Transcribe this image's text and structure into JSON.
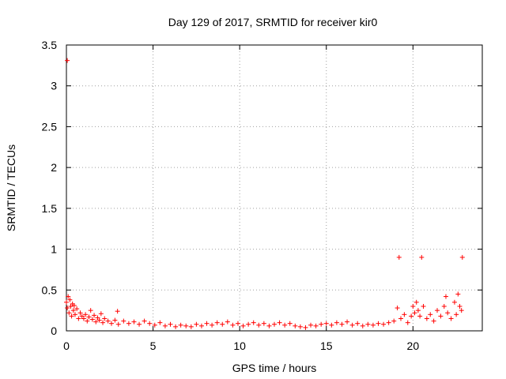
{
  "chart_data": {
    "type": "scatter",
    "title": "Day 129 of 2017, SRMTID for receiver kir0",
    "xlabel": "GPS time / hours",
    "ylabel": "SRMTID / TECUs",
    "xlim": [
      0,
      24
    ],
    "ylim": [
      0,
      3.5
    ],
    "x_ticks": [
      0,
      5,
      10,
      15,
      20
    ],
    "x_tick_labels": [
      "0",
      "5",
      "10",
      "15",
      "20"
    ],
    "y_ticks": [
      0,
      0.5,
      1,
      1.5,
      2,
      2.5,
      3,
      3.5
    ],
    "y_tick_labels": [
      "0",
      "0.5",
      "1",
      "1.5",
      "2",
      "2.5",
      "3",
      "3.5"
    ],
    "grid": true,
    "legend": "none",
    "marker": "+",
    "color": "#ff0000",
    "points": [
      [
        0.05,
        3.31
      ],
      [
        0.0,
        0.35
      ],
      [
        0.05,
        0.28
      ],
      [
        0.1,
        0.42
      ],
      [
        0.15,
        0.22
      ],
      [
        0.2,
        0.38
      ],
      [
        0.25,
        0.3
      ],
      [
        0.3,
        0.18
      ],
      [
        0.35,
        0.33
      ],
      [
        0.4,
        0.25
      ],
      [
        0.45,
        0.31
      ],
      [
        0.5,
        0.2
      ],
      [
        0.6,
        0.27
      ],
      [
        0.7,
        0.15
      ],
      [
        0.8,
        0.22
      ],
      [
        0.9,
        0.18
      ],
      [
        1.0,
        0.15
      ],
      [
        1.1,
        0.2
      ],
      [
        1.2,
        0.12
      ],
      [
        1.3,
        0.17
      ],
      [
        1.4,
        0.25
      ],
      [
        1.5,
        0.14
      ],
      [
        1.6,
        0.19
      ],
      [
        1.7,
        0.11
      ],
      [
        1.8,
        0.16
      ],
      [
        1.9,
        0.13
      ],
      [
        2.0,
        0.21
      ],
      [
        2.1,
        0.1
      ],
      [
        2.2,
        0.15
      ],
      [
        2.4,
        0.12
      ],
      [
        2.6,
        0.09
      ],
      [
        2.8,
        0.13
      ],
      [
        2.95,
        0.24
      ],
      [
        3.0,
        0.08
      ],
      [
        3.3,
        0.12
      ],
      [
        3.6,
        0.09
      ],
      [
        3.9,
        0.11
      ],
      [
        4.2,
        0.08
      ],
      [
        4.5,
        0.12
      ],
      [
        4.8,
        0.09
      ],
      [
        5.1,
        0.07
      ],
      [
        5.4,
        0.1
      ],
      [
        5.7,
        0.06
      ],
      [
        6.0,
        0.08
      ],
      [
        6.3,
        0.05
      ],
      [
        6.6,
        0.07
      ],
      [
        6.9,
        0.06
      ],
      [
        7.2,
        0.05
      ],
      [
        7.5,
        0.08
      ],
      [
        7.8,
        0.06
      ],
      [
        8.1,
        0.09
      ],
      [
        8.4,
        0.07
      ],
      [
        8.7,
        0.1
      ],
      [
        9.0,
        0.08
      ],
      [
        9.3,
        0.11
      ],
      [
        9.6,
        0.07
      ],
      [
        9.9,
        0.09
      ],
      [
        10.2,
        0.06
      ],
      [
        10.5,
        0.08
      ],
      [
        10.8,
        0.1
      ],
      [
        11.1,
        0.07
      ],
      [
        11.4,
        0.09
      ],
      [
        11.7,
        0.06
      ],
      [
        12.0,
        0.08
      ],
      [
        12.3,
        0.1
      ],
      [
        12.6,
        0.07
      ],
      [
        12.9,
        0.09
      ],
      [
        13.2,
        0.06
      ],
      [
        13.5,
        0.05
      ],
      [
        13.8,
        0.04
      ],
      [
        14.1,
        0.07
      ],
      [
        14.4,
        0.06
      ],
      [
        14.7,
        0.08
      ],
      [
        15.0,
        0.09
      ],
      [
        15.3,
        0.07
      ],
      [
        15.6,
        0.1
      ],
      [
        15.9,
        0.08
      ],
      [
        16.2,
        0.11
      ],
      [
        16.5,
        0.07
      ],
      [
        16.8,
        0.09
      ],
      [
        17.1,
        0.06
      ],
      [
        17.4,
        0.08
      ],
      [
        17.7,
        0.07
      ],
      [
        18.0,
        0.09
      ],
      [
        18.3,
        0.08
      ],
      [
        18.6,
        0.1
      ],
      [
        18.9,
        0.12
      ],
      [
        19.2,
        0.9
      ],
      [
        19.1,
        0.28
      ],
      [
        19.3,
        0.15
      ],
      [
        19.5,
        0.2
      ],
      [
        19.7,
        0.1
      ],
      [
        19.9,
        0.18
      ],
      [
        20.0,
        0.3
      ],
      [
        20.1,
        0.22
      ],
      [
        20.2,
        0.35
      ],
      [
        20.3,
        0.25
      ],
      [
        20.4,
        0.18
      ],
      [
        20.5,
        0.9
      ],
      [
        20.6,
        0.3
      ],
      [
        20.8,
        0.15
      ],
      [
        21.0,
        0.2
      ],
      [
        21.2,
        0.12
      ],
      [
        21.4,
        0.25
      ],
      [
        21.6,
        0.18
      ],
      [
        21.8,
        0.3
      ],
      [
        21.9,
        0.42
      ],
      [
        22.0,
        0.22
      ],
      [
        22.2,
        0.15
      ],
      [
        22.4,
        0.35
      ],
      [
        22.5,
        0.2
      ],
      [
        22.6,
        0.45
      ],
      [
        22.7,
        0.3
      ],
      [
        22.8,
        0.25
      ],
      [
        22.85,
        0.9
      ]
    ]
  }
}
